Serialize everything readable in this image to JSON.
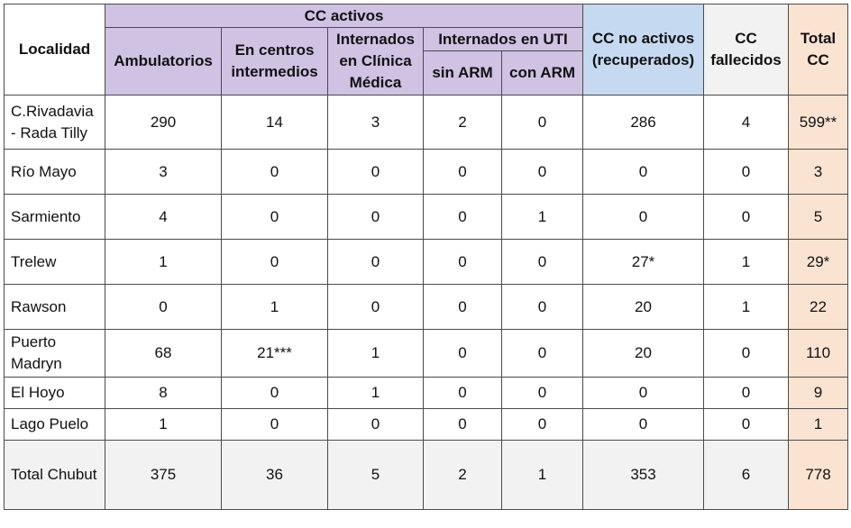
{
  "headers": {
    "localidad": "Localidad",
    "cc_activos": "CC activos",
    "ambulatorios": "Ambulatorios",
    "centros_intermedios": "En centros intermedios",
    "internados_clinica": "Internados en Clínica Médica",
    "internados_uti": "Internados en UTI",
    "sin_arm": "sin ARM",
    "con_arm": "con ARM",
    "no_activos": "CC no activos (recuperados)",
    "fallecidos": "CC fallecidos",
    "total": "Total CC"
  },
  "rows": [
    {
      "localidad": "C.Rivadavia - Rada Tilly",
      "ambulatorios": "290",
      "intermedios": "14",
      "clinica": "3",
      "sin_arm": "2",
      "con_arm": "0",
      "no_activos": "286",
      "fallecidos": "4",
      "total": "599**"
    },
    {
      "localidad": "Río Mayo",
      "ambulatorios": "3",
      "intermedios": "0",
      "clinica": "0",
      "sin_arm": "0",
      "con_arm": "0",
      "no_activos": "0",
      "fallecidos": "0",
      "total": "3"
    },
    {
      "localidad": "Sarmiento",
      "ambulatorios": "4",
      "intermedios": "0",
      "clinica": "0",
      "sin_arm": "0",
      "con_arm": "1",
      "no_activos": "0",
      "fallecidos": "0",
      "total": "5"
    },
    {
      "localidad": "Trelew",
      "ambulatorios": "1",
      "intermedios": "0",
      "clinica": "0",
      "sin_arm": "0",
      "con_arm": "0",
      "no_activos": "27*",
      "fallecidos": "1",
      "total": "29*"
    },
    {
      "localidad": "Rawson",
      "ambulatorios": "0",
      "intermedios": "1",
      "clinica": "0",
      "sin_arm": "0",
      "con_arm": "0",
      "no_activos": "20",
      "fallecidos": "1",
      "total": "22"
    },
    {
      "localidad": "Puerto Madryn",
      "ambulatorios": "68",
      "intermedios": "21***",
      "clinica": "1",
      "sin_arm": "0",
      "con_arm": "0",
      "no_activos": "20",
      "fallecidos": "0",
      "total": "110"
    },
    {
      "localidad": "El Hoyo",
      "ambulatorios": "8",
      "intermedios": "0",
      "clinica": "1",
      "sin_arm": "0",
      "con_arm": "0",
      "no_activos": "0",
      "fallecidos": "0",
      "total": "9"
    },
    {
      "localidad": "Lago Puelo",
      "ambulatorios": "1",
      "intermedios": "0",
      "clinica": "0",
      "sin_arm": "0",
      "con_arm": "0",
      "no_activos": "0",
      "fallecidos": "0",
      "total": "1"
    }
  ],
  "total_row": {
    "localidad": "Total Chubut",
    "ambulatorios": "375",
    "intermedios": "36",
    "clinica": "5",
    "sin_arm": "2",
    "con_arm": "1",
    "no_activos": "353",
    "fallecidos": "6",
    "total": "778"
  },
  "colors": {
    "cc_activos_header": "#cfc2e3",
    "no_activos_header": "#c5d9f0",
    "fallecidos_header": "#f2f2f2",
    "total_column": "#fbe3d2",
    "total_row": "#f2f2f2"
  }
}
